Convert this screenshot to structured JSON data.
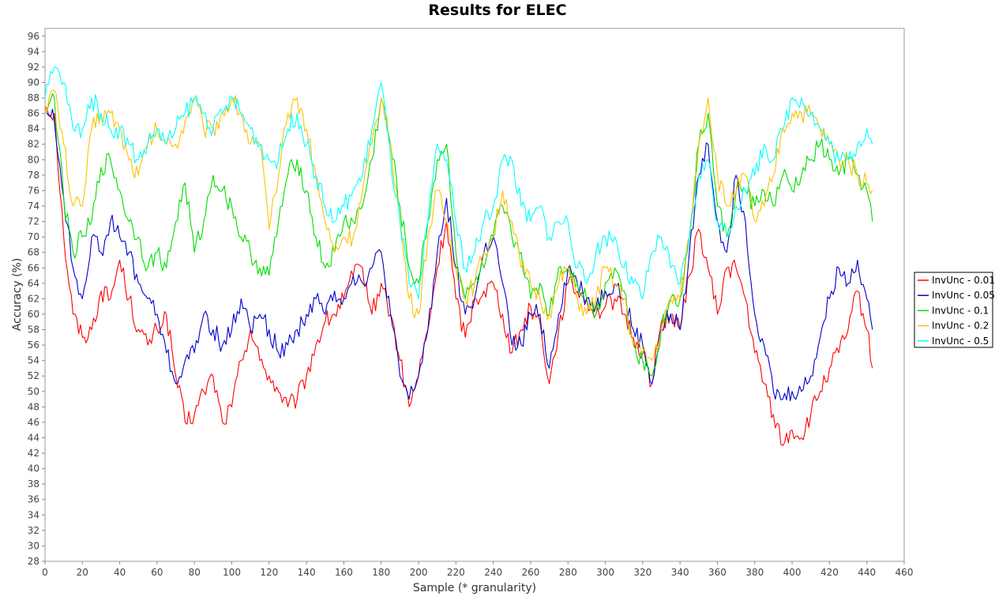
{
  "chart_data": {
    "type": "line",
    "title": "Results for ELEC",
    "xlabel": "Sample (* granularity)",
    "ylabel": "Accuracy (%)",
    "xlim": [
      0,
      460
    ],
    "ylim": [
      28,
      97
    ],
    "x_ticks": [
      0,
      20,
      40,
      60,
      80,
      100,
      120,
      140,
      160,
      180,
      200,
      220,
      240,
      260,
      280,
      300,
      320,
      340,
      360,
      380,
      400,
      420,
      440,
      460
    ],
    "y_ticks": [
      28,
      30,
      32,
      34,
      36,
      38,
      40,
      42,
      44,
      46,
      48,
      50,
      52,
      54,
      56,
      58,
      60,
      62,
      64,
      66,
      68,
      70,
      72,
      74,
      76,
      78,
      80,
      82,
      84,
      86,
      88,
      90,
      92,
      94,
      96
    ],
    "grid": false,
    "legend_position": "right",
    "series": [
      {
        "name": "InvUnc - 0.01",
        "color": "#ff0000",
        "x": [
          0,
          5,
          10,
          15,
          20,
          25,
          30,
          35,
          40,
          45,
          50,
          55,
          60,
          65,
          70,
          75,
          80,
          85,
          90,
          95,
          100,
          105,
          110,
          115,
          120,
          125,
          130,
          135,
          140,
          145,
          150,
          155,
          160,
          165,
          170,
          175,
          180,
          185,
          190,
          195,
          200,
          205,
          210,
          215,
          220,
          225,
          230,
          235,
          240,
          245,
          250,
          255,
          260,
          265,
          270,
          275,
          280,
          285,
          290,
          295,
          300,
          305,
          310,
          315,
          320,
          325,
          330,
          335,
          340,
          345,
          350,
          355,
          360,
          365,
          370,
          375,
          380,
          385,
          390,
          395,
          400,
          405,
          410,
          415,
          420,
          425,
          430,
          435,
          440,
          443
        ],
        "values": [
          87,
          86,
          70,
          60,
          57,
          58,
          63,
          62,
          67,
          62,
          58,
          56,
          58,
          60,
          52,
          46,
          47,
          50,
          52,
          46,
          48,
          54,
          58,
          54,
          52,
          50,
          48,
          49,
          52,
          56,
          59,
          60,
          62,
          65,
          66,
          60,
          64,
          60,
          54,
          48,
          52,
          58,
          66,
          72,
          62,
          57,
          62,
          63,
          64,
          60,
          55,
          58,
          61,
          59,
          51,
          58,
          64,
          63,
          62,
          60,
          61,
          62,
          60,
          57,
          55,
          51,
          59,
          60,
          58,
          65,
          71,
          66,
          60,
          66,
          66,
          62,
          55,
          51,
          47,
          43,
          45,
          44,
          47,
          50,
          53,
          55,
          58,
          63,
          58,
          53
        ]
      },
      {
        "name": "InvUnc - 0.05",
        "color": "#0000cc",
        "x": [
          0,
          5,
          10,
          15,
          20,
          25,
          30,
          35,
          40,
          45,
          50,
          55,
          60,
          65,
          70,
          75,
          80,
          85,
          90,
          95,
          100,
          105,
          110,
          115,
          120,
          125,
          130,
          135,
          140,
          145,
          150,
          155,
          160,
          165,
          170,
          175,
          180,
          185,
          190,
          195,
          200,
          205,
          210,
          215,
          220,
          225,
          230,
          235,
          240,
          245,
          250,
          255,
          260,
          265,
          270,
          275,
          280,
          285,
          290,
          295,
          300,
          305,
          310,
          315,
          320,
          325,
          330,
          335,
          340,
          345,
          350,
          355,
          360,
          365,
          370,
          375,
          380,
          385,
          390,
          395,
          400,
          405,
          410,
          415,
          420,
          425,
          430,
          435,
          440,
          443
        ],
        "values": [
          87,
          85,
          75,
          66,
          62,
          70,
          68,
          72,
          70,
          68,
          64,
          62,
          60,
          55,
          51,
          54,
          55,
          60,
          58,
          56,
          58,
          62,
          58,
          60,
          58,
          55,
          56,
          58,
          60,
          62,
          60,
          63,
          62,
          65,
          64,
          66,
          68,
          60,
          52,
          49,
          52,
          58,
          68,
          75,
          66,
          60,
          62,
          68,
          70,
          64,
          56,
          56,
          60,
          60,
          53,
          60,
          66,
          64,
          62,
          61,
          63,
          64,
          62,
          58,
          56,
          51,
          58,
          60,
          58,
          68,
          78,
          82,
          72,
          68,
          78,
          72,
          60,
          56,
          50,
          49,
          50,
          50,
          52,
          57,
          62,
          66,
          64,
          67,
          62,
          58
        ]
      },
      {
        "name": "InvUnc - 0.1",
        "color": "#00dd00",
        "x": [
          0,
          5,
          10,
          15,
          20,
          25,
          30,
          35,
          40,
          45,
          50,
          55,
          60,
          65,
          70,
          75,
          80,
          85,
          90,
          95,
          100,
          105,
          110,
          115,
          120,
          125,
          130,
          135,
          140,
          145,
          150,
          155,
          160,
          165,
          170,
          175,
          180,
          185,
          190,
          195,
          200,
          205,
          210,
          215,
          220,
          225,
          230,
          235,
          240,
          245,
          250,
          255,
          260,
          265,
          270,
          275,
          280,
          285,
          290,
          295,
          300,
          305,
          310,
          315,
          320,
          325,
          330,
          335,
          340,
          345,
          350,
          355,
          360,
          365,
          370,
          375,
          380,
          385,
          390,
          395,
          400,
          405,
          410,
          415,
          420,
          425,
          430,
          435,
          440,
          443
        ],
        "values": [
          87,
          88,
          75,
          68,
          70,
          72,
          79,
          80,
          76,
          72,
          70,
          66,
          68,
          66,
          72,
          77,
          68,
          72,
          78,
          76,
          74,
          70,
          68,
          66,
          65,
          72,
          78,
          80,
          76,
          70,
          66,
          68,
          72,
          72,
          74,
          80,
          88,
          82,
          74,
          66,
          64,
          72,
          80,
          82,
          68,
          62,
          64,
          66,
          70,
          74,
          70,
          68,
          62,
          64,
          60,
          66,
          66,
          64,
          62,
          60,
          64,
          66,
          63,
          56,
          54,
          52,
          58,
          62,
          62,
          70,
          82,
          86,
          74,
          70,
          76,
          76,
          74,
          76,
          74,
          78,
          76,
          78,
          80,
          82,
          80,
          78,
          80,
          78,
          76,
          72
        ]
      },
      {
        "name": "InvUnc - 0.2",
        "color": "#ffc000",
        "x": [
          0,
          5,
          10,
          15,
          20,
          25,
          30,
          35,
          40,
          45,
          50,
          55,
          60,
          65,
          70,
          75,
          80,
          85,
          90,
          95,
          100,
          105,
          110,
          115,
          120,
          125,
          130,
          135,
          140,
          145,
          150,
          155,
          160,
          165,
          170,
          175,
          180,
          185,
          190,
          195,
          200,
          205,
          210,
          215,
          220,
          225,
          230,
          235,
          240,
          245,
          250,
          255,
          260,
          265,
          270,
          275,
          280,
          285,
          290,
          295,
          300,
          305,
          310,
          315,
          320,
          325,
          330,
          335,
          340,
          345,
          350,
          355,
          360,
          365,
          370,
          375,
          380,
          385,
          390,
          395,
          400,
          405,
          410,
          415,
          420,
          425,
          430,
          435,
          440,
          443
        ],
        "values": [
          87,
          89,
          82,
          74,
          74,
          84,
          86,
          86,
          84,
          80,
          78,
          82,
          84,
          82,
          82,
          85,
          88,
          84,
          84,
          86,
          88,
          86,
          82,
          82,
          71,
          78,
          86,
          88,
          84,
          78,
          72,
          68,
          70,
          70,
          76,
          82,
          88,
          82,
          72,
          62,
          60,
          70,
          76,
          72,
          66,
          62,
          64,
          68,
          70,
          76,
          72,
          66,
          64,
          62,
          60,
          64,
          66,
          62,
          60,
          62,
          66,
          64,
          62,
          56,
          55,
          54,
          58,
          62,
          62,
          70,
          82,
          88,
          78,
          74,
          76,
          78,
          72,
          74,
          78,
          84,
          86,
          86,
          86,
          84,
          82,
          80,
          80,
          78,
          77,
          76
        ]
      },
      {
        "name": "InvUnc - 0.5",
        "color": "#00ffff",
        "x": [
          0,
          5,
          10,
          15,
          20,
          25,
          30,
          35,
          40,
          45,
          50,
          55,
          60,
          65,
          70,
          75,
          80,
          85,
          90,
          95,
          100,
          105,
          110,
          115,
          120,
          125,
          130,
          135,
          140,
          145,
          150,
          155,
          160,
          165,
          170,
          175,
          180,
          185,
          190,
          195,
          200,
          205,
          210,
          215,
          220,
          225,
          230,
          235,
          240,
          245,
          250,
          255,
          260,
          265,
          270,
          275,
          280,
          285,
          290,
          295,
          300,
          305,
          310,
          315,
          320,
          325,
          330,
          335,
          340,
          345,
          350,
          355,
          360,
          365,
          370,
          375,
          380,
          385,
          390,
          395,
          400,
          405,
          410,
          415,
          420,
          425,
          430,
          435,
          440,
          443
        ],
        "values": [
          88,
          92,
          90,
          84,
          84,
          88,
          86,
          84,
          84,
          82,
          80,
          82,
          84,
          82,
          84,
          86,
          88,
          86,
          84,
          86,
          88,
          86,
          84,
          82,
          80,
          80,
          84,
          86,
          82,
          78,
          74,
          72,
          74,
          76,
          78,
          84,
          90,
          80,
          72,
          64,
          62,
          72,
          82,
          80,
          72,
          66,
          68,
          72,
          74,
          80,
          80,
          74,
          72,
          74,
          70,
          72,
          72,
          66,
          64,
          68,
          70,
          70,
          66,
          64,
          62,
          68,
          70,
          66,
          64,
          70,
          78,
          80,
          72,
          70,
          74,
          76,
          78,
          82,
          80,
          84,
          88,
          88,
          86,
          84,
          82,
          80,
          80,
          82,
          84,
          82
        ]
      }
    ]
  }
}
